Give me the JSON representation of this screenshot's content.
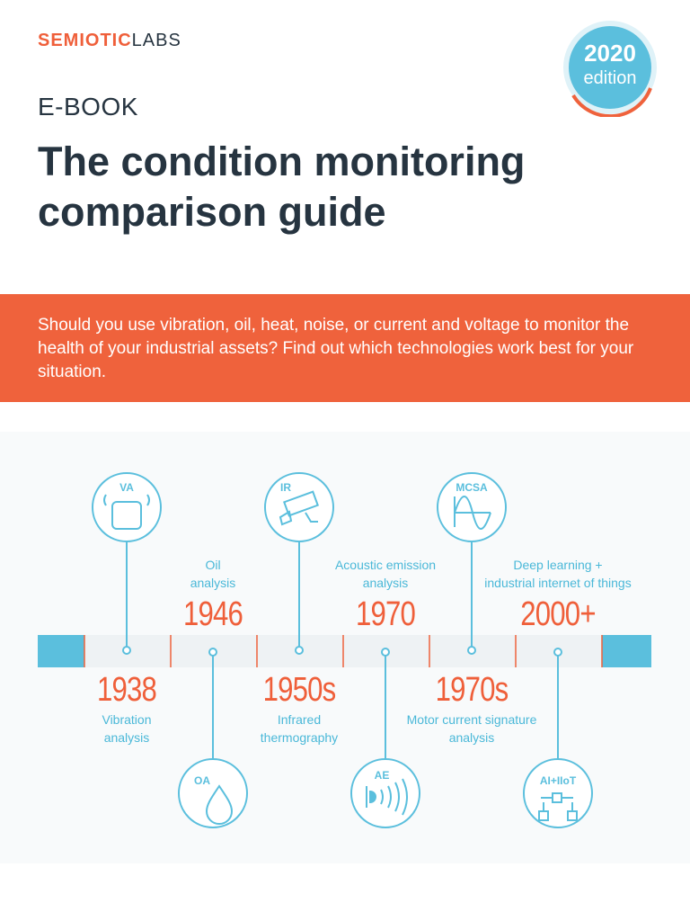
{
  "header": {
    "logo_bold": "SEMIOTIC",
    "logo_light": "LABS",
    "badge_year": "2020",
    "badge_edition": "edition",
    "kicker": "E-BOOK",
    "title": "The condition monitoring comparison guide"
  },
  "band": {
    "text": "Should you use vibration, oil, heat, noise, or current and voltage to monitor the health of your industrial assets? Find out which technologies work best for your situation."
  },
  "timeline": {
    "events": [
      {
        "year": "1938",
        "label": "Vibration\nanalysis",
        "icon": "VA",
        "icon_name": "vibration-sensor-icon"
      },
      {
        "year": "1946",
        "label": "Oil\nanalysis",
        "icon": "OA",
        "icon_name": "oil-drop-icon"
      },
      {
        "year": "1950s",
        "label": "Infrared\nthermography",
        "icon": "IR",
        "icon_name": "infrared-camera-icon"
      },
      {
        "year": "1970",
        "label": "Acoustic emission\nanalysis",
        "icon": "AE",
        "icon_name": "acoustic-waves-icon"
      },
      {
        "year": "1970s",
        "label": "Motor current signature\nanalysis",
        "icon": "MCSA",
        "icon_name": "sine-wave-icon"
      },
      {
        "year": "2000+",
        "label": "Deep learning +\nindustrial internet of things",
        "icon": "AI+IIoT",
        "icon_name": "network-nodes-icon"
      }
    ]
  },
  "colors": {
    "orange": "#ef623c",
    "blue": "#5bbfdd",
    "dark": "#263440"
  }
}
